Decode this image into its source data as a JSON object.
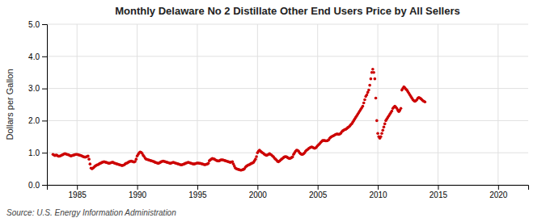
{
  "chart_data": {
    "type": "scatter",
    "title": "Monthly Delaware No 2 Distillate Other End Users Price by All Sellers",
    "ylabel": "Dollars per Gallon",
    "source": "Source: U.S. Energy Information Administration",
    "color": "#cc0000",
    "grid": true,
    "xlim": [
      1982.5,
      2022.5
    ],
    "ylim": [
      0.0,
      5.0
    ],
    "xticks": [
      1985,
      1990,
      1995,
      2000,
      2005,
      2010,
      2015,
      2020
    ],
    "yticks": [
      {
        "value": 0.0,
        "label": "0.0"
      },
      {
        "value": 1.0,
        "label": "1.0"
      },
      {
        "value": 2.0,
        "label": "2.0"
      },
      {
        "value": 3.0,
        "label": "3.0"
      },
      {
        "value": 4.0,
        "label": "4.0"
      },
      {
        "value": 5.0,
        "label": "5.0"
      }
    ],
    "x": [
      1983.0,
      1983.083,
      1983.167,
      1983.25,
      1983.333,
      1983.417,
      1983.5,
      1983.583,
      1983.667,
      1983.75,
      1983.833,
      1983.917,
      1984.0,
      1984.083,
      1984.167,
      1984.25,
      1984.333,
      1984.417,
      1984.5,
      1984.583,
      1984.667,
      1984.75,
      1984.833,
      1984.917,
      1985.0,
      1985.083,
      1985.167,
      1985.25,
      1985.333,
      1985.417,
      1985.5,
      1985.583,
      1985.667,
      1985.75,
      1985.833,
      1985.917,
      1986.0,
      1986.083,
      1986.167,
      1986.25,
      1986.333,
      1986.417,
      1986.5,
      1986.583,
      1986.667,
      1986.75,
      1986.833,
      1986.917,
      1987.0,
      1987.083,
      1987.167,
      1987.25,
      1987.333,
      1987.417,
      1987.5,
      1987.583,
      1987.667,
      1987.75,
      1987.833,
      1987.917,
      1988.0,
      1988.083,
      1988.167,
      1988.25,
      1988.333,
      1988.417,
      1988.5,
      1988.583,
      1988.667,
      1988.75,
      1988.833,
      1988.917,
      1989.0,
      1989.083,
      1989.167,
      1989.25,
      1989.333,
      1989.417,
      1989.5,
      1989.583,
      1989.667,
      1989.75,
      1989.833,
      1989.917,
      1990.0,
      1990.083,
      1990.167,
      1990.25,
      1990.333,
      1990.417,
      1990.5,
      1990.583,
      1990.667,
      1990.75,
      1990.833,
      1990.917,
      1991.0,
      1991.083,
      1991.167,
      1991.25,
      1991.333,
      1991.417,
      1991.5,
      1991.583,
      1991.667,
      1991.75,
      1991.833,
      1991.917,
      1992.0,
      1992.083,
      1992.167,
      1992.25,
      1992.333,
      1992.417,
      1992.5,
      1992.583,
      1992.667,
      1992.75,
      1992.833,
      1992.917,
      1993.0,
      1993.083,
      1993.167,
      1993.25,
      1993.333,
      1993.417,
      1993.5,
      1993.583,
      1993.667,
      1993.75,
      1993.833,
      1993.917,
      1994.0,
      1994.083,
      1994.167,
      1994.25,
      1994.333,
      1994.417,
      1994.5,
      1994.583,
      1994.667,
      1994.75,
      1994.833,
      1994.917,
      1995.0,
      1995.083,
      1995.167,
      1995.25,
      1995.333,
      1995.417,
      1995.5,
      1995.583,
      1995.667,
      1995.75,
      1995.833,
      1995.917,
      1996.0,
      1996.083,
      1996.167,
      1996.25,
      1996.333,
      1996.417,
      1996.5,
      1996.583,
      1996.667,
      1996.75,
      1996.833,
      1996.917,
      1997.0,
      1997.083,
      1997.167,
      1997.25,
      1997.333,
      1997.417,
      1997.5,
      1997.583,
      1997.667,
      1997.75,
      1997.833,
      1997.917,
      1998.0,
      1998.083,
      1998.167,
      1998.25,
      1998.333,
      1998.417,
      1998.5,
      1998.583,
      1998.667,
      1998.75,
      1998.833,
      1998.917,
      1999.0,
      1999.083,
      1999.167,
      1999.25,
      1999.333,
      1999.417,
      1999.5,
      1999.583,
      1999.667,
      1999.75,
      1999.833,
      1999.917,
      2000.0,
      2000.083,
      2000.167,
      2000.25,
      2000.333,
      2000.417,
      2000.5,
      2000.583,
      2000.667,
      2000.75,
      2000.833,
      2000.917,
      2001.0,
      2001.083,
      2001.167,
      2001.25,
      2001.333,
      2001.417,
      2001.5,
      2001.583,
      2001.667,
      2001.75,
      2001.833,
      2001.917,
      2002.0,
      2002.083,
      2002.167,
      2002.25,
      2002.333,
      2002.417,
      2002.5,
      2002.583,
      2002.667,
      2002.75,
      2002.833,
      2002.917,
      2003.0,
      2003.083,
      2003.167,
      2003.25,
      2003.333,
      2003.417,
      2003.5,
      2003.583,
      2003.667,
      2003.75,
      2003.833,
      2003.917,
      2004.0,
      2004.083,
      2004.167,
      2004.25,
      2004.333,
      2004.417,
      2004.5,
      2004.583,
      2004.667,
      2004.75,
      2004.833,
      2004.917,
      2005.0,
      2005.083,
      2005.167,
      2005.25,
      2005.333,
      2005.417,
      2005.5,
      2005.583,
      2005.667,
      2005.75,
      2005.833,
      2005.917,
      2006.0,
      2006.083,
      2006.167,
      2006.25,
      2006.333,
      2006.417,
      2006.5,
      2006.583,
      2006.667,
      2006.75,
      2006.833,
      2006.917,
      2007.0,
      2007.083,
      2007.167,
      2007.25,
      2007.333,
      2007.417,
      2007.5,
      2007.583,
      2007.667,
      2007.75,
      2007.833,
      2007.917,
      2008.0,
      2008.083,
      2008.167,
      2008.25,
      2008.333,
      2008.417,
      2008.5,
      2008.583,
      2008.667,
      2008.75,
      2008.833,
      2008.917,
      2009.0,
      2009.083,
      2009.167,
      2009.25,
      2009.333,
      2009.417,
      2009.5,
      2009.583,
      2009.667,
      2009.75,
      2009.833,
      2009.917,
      2010.0,
      2010.083,
      2010.167,
      2010.25,
      2010.333,
      2010.417,
      2010.5,
      2010.583,
      2010.667,
      2010.75,
      2010.833,
      2010.917,
      2011.0,
      2011.083,
      2011.167,
      2011.25,
      2011.333,
      2011.417,
      2011.5,
      2011.583,
      2011.667,
      2011.75,
      2011.833,
      2011.917,
      2012.0,
      2012.083,
      2012.167,
      2012.25,
      2012.333,
      2012.417,
      2012.5,
      2012.583,
      2012.667,
      2012.75,
      2012.833,
      2012.917,
      2013.0,
      2013.083,
      2013.167,
      2013.25,
      2013.333,
      2013.417,
      2013.5,
      2013.583,
      2013.667,
      2013.75,
      2013.833,
      2013.917
    ],
    "values": [
      0.95,
      0.93,
      0.91,
      0.93,
      0.92,
      0.9,
      0.89,
      0.9,
      0.91,
      0.93,
      0.94,
      0.96,
      0.97,
      0.96,
      0.95,
      0.94,
      0.93,
      0.91,
      0.9,
      0.91,
      0.92,
      0.93,
      0.94,
      0.95,
      0.95,
      0.94,
      0.93,
      0.92,
      0.91,
      0.9,
      0.88,
      0.87,
      0.86,
      0.87,
      0.88,
      0.9,
      0.8,
      0.65,
      0.52,
      0.5,
      0.52,
      0.55,
      0.58,
      0.6,
      0.62,
      0.63,
      0.65,
      0.67,
      0.68,
      0.7,
      0.71,
      0.72,
      0.71,
      0.7,
      0.69,
      0.68,
      0.67,
      0.68,
      0.69,
      0.7,
      0.7,
      0.68,
      0.67,
      0.66,
      0.65,
      0.64,
      0.63,
      0.62,
      0.61,
      0.6,
      0.61,
      0.62,
      0.65,
      0.67,
      0.68,
      0.7,
      0.72,
      0.73,
      0.74,
      0.73,
      0.72,
      0.71,
      0.73,
      0.8,
      0.9,
      0.95,
      1.0,
      1.02,
      1.01,
      0.98,
      0.92,
      0.88,
      0.83,
      0.8,
      0.79,
      0.78,
      0.77,
      0.76,
      0.75,
      0.74,
      0.73,
      0.72,
      0.7,
      0.69,
      0.68,
      0.67,
      0.68,
      0.7,
      0.72,
      0.73,
      0.74,
      0.73,
      0.72,
      0.71,
      0.7,
      0.69,
      0.68,
      0.67,
      0.68,
      0.69,
      0.7,
      0.69,
      0.68,
      0.67,
      0.66,
      0.65,
      0.64,
      0.63,
      0.62,
      0.63,
      0.64,
      0.65,
      0.67,
      0.68,
      0.69,
      0.7,
      0.69,
      0.68,
      0.67,
      0.66,
      0.65,
      0.65,
      0.66,
      0.67,
      0.68,
      0.68,
      0.67,
      0.67,
      0.66,
      0.65,
      0.64,
      0.63,
      0.63,
      0.64,
      0.65,
      0.67,
      0.75,
      0.78,
      0.8,
      0.82,
      0.81,
      0.8,
      0.78,
      0.76,
      0.75,
      0.74,
      0.75,
      0.77,
      0.78,
      0.78,
      0.77,
      0.76,
      0.75,
      0.74,
      0.73,
      0.72,
      0.71,
      0.7,
      0.71,
      0.72,
      0.65,
      0.58,
      0.52,
      0.5,
      0.49,
      0.48,
      0.47,
      0.46,
      0.46,
      0.47,
      0.48,
      0.5,
      0.55,
      0.58,
      0.6,
      0.62,
      0.63,
      0.65,
      0.67,
      0.68,
      0.7,
      0.75,
      0.8,
      0.88,
      1.0,
      1.05,
      1.08,
      1.05,
      1.02,
      1.0,
      0.98,
      0.95,
      0.93,
      0.92,
      0.93,
      0.95,
      0.97,
      0.95,
      0.93,
      0.9,
      0.87,
      0.83,
      0.8,
      0.77,
      0.73,
      0.72,
      0.74,
      0.77,
      0.8,
      0.82,
      0.85,
      0.87,
      0.88,
      0.87,
      0.85,
      0.83,
      0.82,
      0.83,
      0.85,
      0.87,
      0.95,
      1.0,
      1.05,
      1.08,
      1.07,
      1.05,
      1.0,
      0.97,
      0.95,
      0.95,
      0.97,
      1.0,
      1.05,
      1.08,
      1.1,
      1.13,
      1.15,
      1.17,
      1.18,
      1.17,
      1.15,
      1.14,
      1.15,
      1.18,
      1.22,
      1.25,
      1.28,
      1.32,
      1.35,
      1.38,
      1.38,
      1.38,
      1.37,
      1.37,
      1.38,
      1.4,
      1.45,
      1.48,
      1.5,
      1.52,
      1.53,
      1.55,
      1.57,
      1.58,
      1.58,
      1.57,
      1.58,
      1.6,
      1.65,
      1.68,
      1.7,
      1.72,
      1.73,
      1.75,
      1.78,
      1.8,
      1.83,
      1.87,
      1.9,
      1.95,
      2.0,
      2.05,
      2.1,
      2.15,
      2.2,
      2.25,
      2.3,
      2.35,
      2.4,
      2.45,
      2.55,
      2.65,
      2.75,
      2.8,
      2.88,
      2.95,
      3.1,
      3.3,
      3.5,
      3.6,
      3.5,
      3.3,
      2.7,
      2.0,
      1.6,
      1.5,
      1.45,
      1.5,
      1.6,
      1.7,
      1.8,
      1.9,
      2.0,
      2.05,
      2.1,
      2.15,
      2.2,
      2.25,
      2.3,
      2.38,
      2.42,
      2.45,
      2.42,
      2.38,
      2.32,
      2.28,
      2.32,
      2.38,
      2.95,
      3.0,
      3.05,
      3.02,
      2.98,
      2.95,
      2.9,
      2.85,
      2.8,
      2.75,
      2.7,
      2.65,
      2.62,
      2.6,
      2.62,
      2.65,
      2.7,
      2.72,
      2.7,
      2.68,
      2.65,
      2.62,
      2.6,
      2.58
    ]
  }
}
